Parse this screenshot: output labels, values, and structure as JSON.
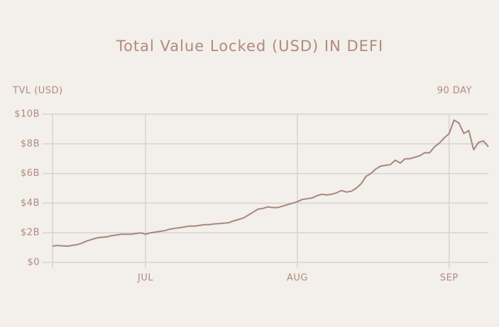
{
  "chart_data": {
    "type": "line",
    "title": "Total Value Locked (USD) IN DEFI",
    "y_label": "TVL (USD)",
    "annotation": "90 DAY",
    "categories": [
      null,
      null,
      null,
      null,
      null,
      null,
      null,
      null,
      null,
      null,
      null,
      null,
      null,
      null,
      null,
      null,
      null,
      null,
      null,
      "JUL",
      null,
      null,
      null,
      null,
      null,
      null,
      null,
      null,
      null,
      null,
      null,
      null,
      null,
      null,
      null,
      null,
      null,
      null,
      null,
      null,
      null,
      null,
      null,
      null,
      null,
      null,
      null,
      null,
      null,
      null,
      "AUG",
      null,
      null,
      null,
      null,
      null,
      null,
      null,
      null,
      null,
      null,
      null,
      null,
      null,
      null,
      null,
      null,
      null,
      null,
      null,
      null,
      null,
      null,
      null,
      null,
      null,
      null,
      null,
      null,
      null,
      null,
      "SEP",
      null,
      null,
      null,
      null,
      null,
      null,
      null,
      null
    ],
    "values": [
      1.1,
      1.15,
      1.12,
      1.1,
      1.15,
      1.2,
      1.3,
      1.45,
      1.55,
      1.65,
      1.7,
      1.72,
      1.8,
      1.85,
      1.9,
      1.9,
      1.9,
      1.95,
      2.0,
      1.9,
      2.0,
      2.05,
      2.1,
      2.15,
      2.25,
      2.3,
      2.35,
      2.4,
      2.45,
      2.45,
      2.5,
      2.55,
      2.55,
      2.6,
      2.62,
      2.65,
      2.68,
      2.8,
      2.9,
      3.0,
      3.2,
      3.4,
      3.6,
      3.65,
      3.75,
      3.7,
      3.7,
      3.8,
      3.9,
      4.0,
      4.1,
      4.25,
      4.3,
      4.35,
      4.5,
      4.6,
      4.55,
      4.6,
      4.7,
      4.85,
      4.75,
      4.8,
      5.0,
      5.3,
      5.8,
      6.0,
      6.3,
      6.5,
      6.55,
      6.6,
      6.9,
      6.7,
      7.0,
      7.0,
      7.1,
      7.2,
      7.4,
      7.4,
      7.8,
      8.05,
      8.4,
      8.7,
      9.6,
      9.4,
      8.7,
      8.9,
      7.6,
      8.1,
      8.2,
      7.8
    ],
    "color": "#a8877a",
    "ylim": [
      0,
      10
    ],
    "yticks": [
      {
        "value": 0,
        "label": "$0"
      },
      {
        "value": 2,
        "label": "$2B"
      },
      {
        "value": 4,
        "label": "$4B"
      },
      {
        "value": 6,
        "label": "$6B"
      },
      {
        "value": 8,
        "label": "$8B"
      },
      {
        "value": 10,
        "label": "$10B"
      }
    ],
    "grid": true
  }
}
